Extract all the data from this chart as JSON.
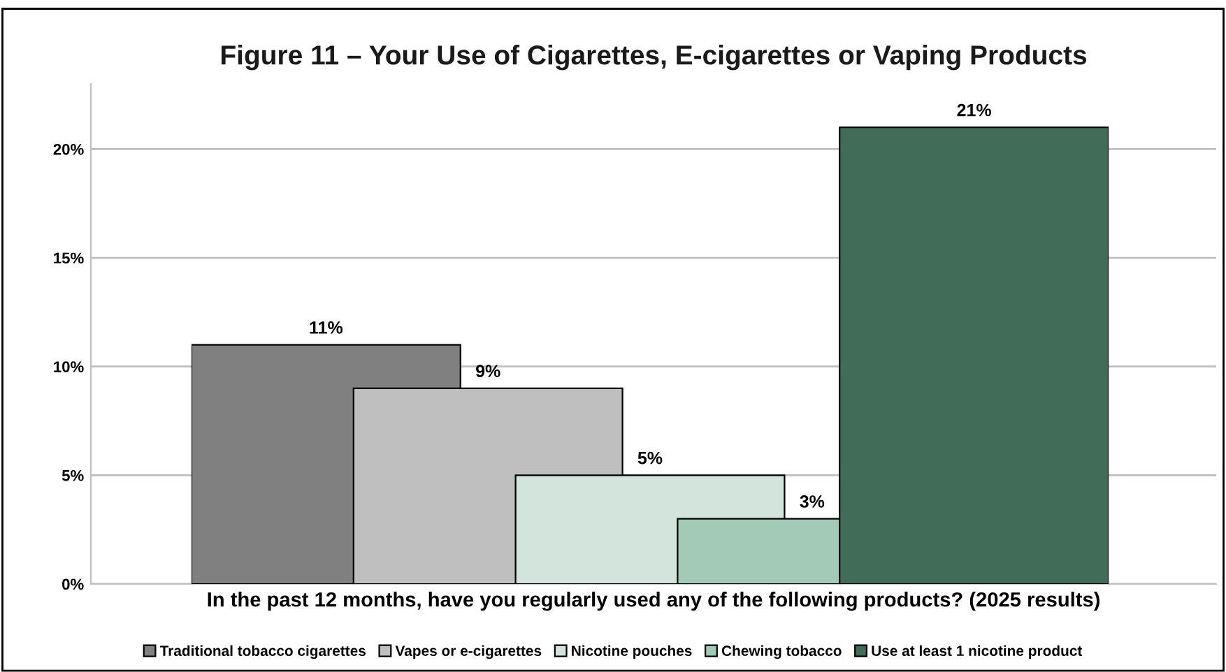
{
  "chart_data": {
    "type": "bar",
    "title": "Figure 11 – Your Use of Cigarettes, E-cigarettes or Vaping Products",
    "xlabel": "In the past 12 months, have you regularly used any of the following products? (2025 results)",
    "categories": [
      "Traditional tobacco cigarettes",
      "Vapes or e-cigarettes",
      "Nicotine pouches",
      "Chewing tobacco",
      "Use at least 1 nicotine product"
    ],
    "values": [
      11,
      9,
      5,
      3,
      21
    ],
    "colors": [
      "#808080",
      "#bfbfbf",
      "#d3e4dc",
      "#a3c9b7",
      "#406c58"
    ],
    "ylim": [
      0,
      23
    ],
    "yticks": [
      {
        "value": 0,
        "label": "0%"
      },
      {
        "value": 5,
        "label": "5%"
      },
      {
        "value": 10,
        "label": "10%"
      },
      {
        "value": 15,
        "label": "15%"
      },
      {
        "value": 20,
        "label": "20%"
      }
    ],
    "value_labels": [
      "11%",
      "9%",
      "5%",
      "3%",
      "21%"
    ],
    "grid": "y",
    "tick_labels": "y"
  }
}
